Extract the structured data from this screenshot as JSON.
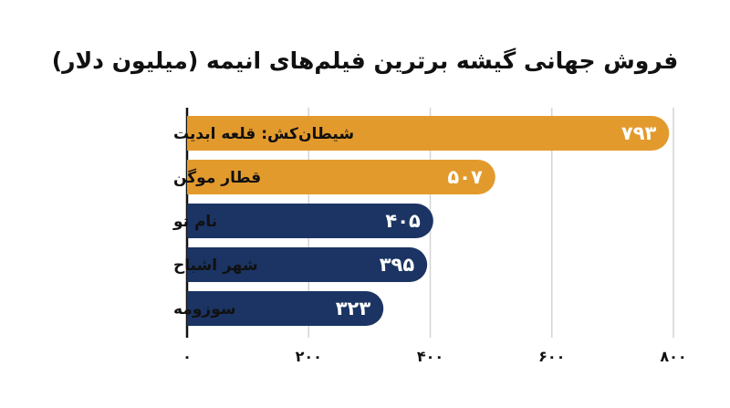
{
  "chart_data": {
    "type": "bar",
    "orientation": "horizontal",
    "title": "فروش جهانی گیشه برترین فیلم‌های انیمه (میلیون دلار)",
    "categories": [
      "شیطان‌کش: قلعه ابدیت",
      "قطار موگن",
      "نام تو",
      "شهر اشباح",
      "سوزومه"
    ],
    "values": [
      793,
      507,
      405,
      395,
      323
    ],
    "value_labels": [
      "۷۹۳",
      "۵۰۷",
      "۴۰۵",
      "۳۹۵",
      "۳۲۳"
    ],
    "bar_colors": [
      "#E39A2D",
      "#E39A2D",
      "#1B3463",
      "#1B3463",
      "#1B3463"
    ],
    "xlim": [
      0,
      800
    ],
    "ticks": [
      0,
      200,
      400,
      600,
      800
    ],
    "tick_labels": [
      "۰",
      "۲۰۰",
      "۴۰۰",
      "۶۰۰",
      "۸۰۰"
    ],
    "grid": "vertical",
    "grid_color": "#D4D4D4",
    "axis_color": "#111111"
  }
}
